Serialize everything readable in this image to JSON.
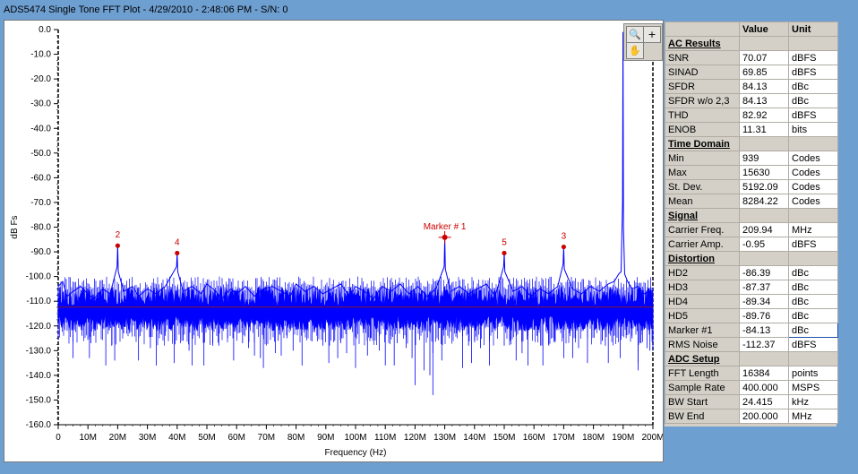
{
  "window": {
    "title": "ADS5474 Single Tone  FFT Plot - 4/29/2010 - 2:48:06 PM - S/N: 0"
  },
  "toolbar": {
    "zoom_icon": "magnifier-icon",
    "crosshair_icon": "plus-icon",
    "pan_icon": "hand-icon"
  },
  "chart_data": {
    "type": "line",
    "xlabel": "Frequency (Hz)",
    "ylabel": "dB Fs",
    "xlim": [
      0,
      200
    ],
    "ylim": [
      -160,
      0
    ],
    "x_ticks": [
      "0",
      "10M",
      "20M",
      "30M",
      "40M",
      "50M",
      "60M",
      "70M",
      "80M",
      "90M",
      "100M",
      "110M",
      "120M",
      "130M",
      "140M",
      "150M",
      "160M",
      "170M",
      "180M",
      "190M",
      "200M"
    ],
    "y_ticks": [
      "0.0",
      "-10.0",
      "-20.0",
      "-30.0",
      "-40.0",
      "-50.0",
      "-60.0",
      "-70.0",
      "-80.0",
      "-90.0",
      "-100.0",
      "-110.0",
      "-120.0",
      "-130.0",
      "-140.0",
      "-150.0",
      "-160.0"
    ],
    "series_color": "#0000ff",
    "noise_floor_level": -112.37,
    "noise_floor_color": "#8b1a1a",
    "spectrum": [
      [
        0,
        -104
      ],
      [
        1.5,
        -102
      ],
      [
        3,
        -108
      ],
      [
        5,
        -106
      ],
      [
        7.5,
        -104
      ],
      [
        10,
        -107
      ],
      [
        12,
        -109
      ],
      [
        15,
        -105
      ],
      [
        17.5,
        -107
      ],
      [
        19.8,
        -96
      ],
      [
        20,
        -87.5
      ],
      [
        20.2,
        -98
      ],
      [
        22,
        -106
      ],
      [
        25,
        -104
      ],
      [
        27,
        -108
      ],
      [
        30,
        -105
      ],
      [
        33,
        -107
      ],
      [
        36,
        -104
      ],
      [
        39.8,
        -96
      ],
      [
        40,
        -90.5
      ],
      [
        40.2,
        -98
      ],
      [
        42,
        -106
      ],
      [
        45,
        -104
      ],
      [
        48,
        -107
      ],
      [
        50,
        -103
      ],
      [
        53,
        -106
      ],
      [
        55,
        -109
      ],
      [
        58,
        -105
      ],
      [
        60,
        -107
      ],
      [
        63,
        -104
      ],
      [
        66,
        -108
      ],
      [
        69,
        -105
      ],
      [
        72,
        -104
      ],
      [
        75,
        -106
      ],
      [
        78,
        -108
      ],
      [
        80,
        -103
      ],
      [
        83,
        -106
      ],
      [
        86,
        -104
      ],
      [
        89,
        -107
      ],
      [
        92,
        -105
      ],
      [
        95,
        -103
      ],
      [
        98,
        -108
      ],
      [
        100,
        -104
      ],
      [
        103,
        -106
      ],
      [
        106,
        -109
      ],
      [
        109,
        -104
      ],
      [
        112,
        -106
      ],
      [
        115,
        -103
      ],
      [
        118,
        -107
      ],
      [
        121,
        -104
      ],
      [
        124,
        -108
      ],
      [
        127,
        -105
      ],
      [
        129.8,
        -96
      ],
      [
        130,
        -84.13
      ],
      [
        130.2,
        -97
      ],
      [
        132,
        -106
      ],
      [
        135,
        -104
      ],
      [
        138,
        -107
      ],
      [
        141,
        -105
      ],
      [
        144,
        -103
      ],
      [
        147,
        -108
      ],
      [
        149.8,
        -96
      ],
      [
        150,
        -90.5
      ],
      [
        150.2,
        -98
      ],
      [
        153,
        -106
      ],
      [
        156,
        -104
      ],
      [
        159,
        -108
      ],
      [
        162,
        -105
      ],
      [
        165,
        -107
      ],
      [
        168,
        -104
      ],
      [
        169.8,
        -95
      ],
      [
        170,
        -88
      ],
      [
        170.2,
        -97
      ],
      [
        173,
        -105
      ],
      [
        176,
        -107
      ],
      [
        179,
        -104
      ],
      [
        182,
        -106
      ],
      [
        185,
        -103
      ],
      [
        187,
        -102
      ],
      [
        188.5,
        -99
      ],
      [
        189.3,
        -98
      ],
      [
        189.8,
        -70
      ],
      [
        189.94,
        -0.95
      ],
      [
        190.1,
        -80
      ],
      [
        190.5,
        -99
      ],
      [
        191.5,
        -102
      ],
      [
        193,
        -105
      ],
      [
        195,
        -104
      ],
      [
        197,
        -107
      ],
      [
        199,
        -106
      ],
      [
        200,
        -106
      ]
    ],
    "noise_min_dips": [
      [
        3,
        -122
      ],
      [
        8,
        -124
      ],
      [
        11,
        -127
      ],
      [
        15,
        -121
      ],
      [
        18,
        -128
      ],
      [
        24,
        -123
      ],
      [
        29,
        -121
      ],
      [
        34,
        -125
      ],
      [
        38,
        -122
      ],
      [
        44,
        -130
      ],
      [
        47,
        -120
      ],
      [
        52,
        -128
      ],
      [
        57,
        -125
      ],
      [
        62,
        -127
      ],
      [
        66,
        -132
      ],
      [
        71,
        -121
      ],
      [
        74,
        -126
      ],
      [
        79,
        -130
      ],
      [
        84,
        -122
      ],
      [
        89,
        -128
      ],
      [
        93,
        -126
      ],
      [
        97,
        -131
      ],
      [
        103,
        -120
      ],
      [
        108,
        -130
      ],
      [
        112,
        -124
      ],
      [
        117,
        -129
      ],
      [
        120,
        -123
      ],
      [
        126,
        -131
      ],
      [
        134,
        -123
      ],
      [
        138,
        -128
      ],
      [
        142,
        -129
      ],
      [
        147,
        -122
      ],
      [
        152,
        -126
      ],
      [
        156,
        -131
      ],
      [
        161,
        -124
      ],
      [
        165,
        -128
      ],
      [
        172,
        -123
      ],
      [
        175,
        -129
      ],
      [
        181,
        -121
      ],
      [
        184,
        -128
      ],
      [
        187,
        -124
      ],
      [
        193,
        -125
      ],
      [
        196,
        -127
      ],
      [
        199,
        -130
      ],
      [
        5,
        -133
      ],
      [
        12,
        -124
      ],
      [
        16,
        -136
      ],
      [
        22,
        -123
      ],
      [
        27,
        -134
      ],
      [
        31,
        -129
      ],
      [
        36,
        -124
      ],
      [
        39,
        -135
      ],
      [
        42,
        -126
      ],
      [
        49,
        -136
      ],
      [
        54,
        -128
      ],
      [
        59,
        -134
      ],
      [
        64,
        -129
      ],
      [
        69,
        -137
      ],
      [
        73,
        -131
      ],
      [
        77,
        -125
      ],
      [
        82,
        -136
      ],
      [
        87,
        -124
      ],
      [
        91,
        -135
      ],
      [
        95,
        -127
      ],
      [
        100,
        -137
      ],
      [
        105,
        -125
      ],
      [
        110,
        -136
      ],
      [
        114,
        -127
      ],
      [
        119,
        -133
      ],
      [
        123,
        -138
      ],
      [
        125,
        -140
      ],
      [
        129,
        -134
      ],
      [
        131,
        -124
      ],
      [
        136,
        -137
      ],
      [
        140,
        -126
      ],
      [
        145,
        -136
      ],
      [
        150,
        -128
      ],
      [
        154,
        -134
      ],
      [
        158,
        -124
      ],
      [
        163,
        -136
      ],
      [
        167,
        -126
      ],
      [
        170,
        -133
      ],
      [
        174,
        -125
      ],
      [
        178,
        -135
      ],
      [
        183,
        -126
      ],
      [
        189,
        -133
      ],
      [
        191,
        -125
      ],
      [
        195,
        -135
      ],
      [
        198,
        -129
      ],
      [
        200,
        -124
      ]
    ],
    "deep_dips": [
      [
        10.5,
        -133
      ],
      [
        19,
        -134
      ],
      [
        33,
        -136
      ],
      [
        45,
        -136
      ],
      [
        68,
        -133
      ],
      [
        75,
        -132
      ],
      [
        94,
        -133
      ],
      [
        104,
        -132
      ],
      [
        113,
        -136
      ],
      [
        120,
        -144
      ],
      [
        126,
        -148
      ],
      [
        139,
        -135
      ],
      [
        158,
        -136
      ],
      [
        173,
        -133
      ],
      [
        185,
        -135
      ],
      [
        195,
        -138
      ],
      [
        200,
        -130
      ]
    ],
    "markers": [
      {
        "label": "2",
        "x": 20,
        "y": -87.5,
        "symbol": "dot"
      },
      {
        "label": "4",
        "x": 40,
        "y": -90.5,
        "symbol": "dot"
      },
      {
        "label": "Marker # 1",
        "x": 130,
        "y": -84.13,
        "symbol": "cross"
      },
      {
        "label": "5",
        "x": 150,
        "y": -90.5,
        "symbol": "dot"
      },
      {
        "label": "3",
        "x": 170,
        "y": -88,
        "symbol": "dot"
      }
    ],
    "marker_color": "#cc0000"
  },
  "results": {
    "header": {
      "value": "Value",
      "unit": "Unit"
    },
    "rows": [
      {
        "type": "section",
        "label": "AC Results"
      },
      {
        "label": "SNR",
        "value": "70.07",
        "unit": "dBFS"
      },
      {
        "label": "SINAD",
        "value": "69.85",
        "unit": "dBFS"
      },
      {
        "label": "SFDR",
        "value": "84.13",
        "unit": "dBc"
      },
      {
        "label": "SFDR w/o 2,3",
        "value": "84.13",
        "unit": "dBc"
      },
      {
        "label": "THD",
        "value": "82.92",
        "unit": "dBFS"
      },
      {
        "label": "ENOB",
        "value": "11.31",
        "unit": "bits"
      },
      {
        "type": "section",
        "label": "Time Domain"
      },
      {
        "label": "Min",
        "value": "939",
        "unit": "Codes"
      },
      {
        "label": "Max",
        "value": "15630",
        "unit": "Codes"
      },
      {
        "label": "St. Dev.",
        "value": "5192.09",
        "unit": "Codes"
      },
      {
        "label": "Mean",
        "value": "8284.22",
        "unit": "Codes"
      },
      {
        "type": "section",
        "label": "Signal"
      },
      {
        "label": "Carrier Freq.",
        "value": "209.94",
        "unit": "MHz"
      },
      {
        "label": "Carrier Amp.",
        "value": "-0.95",
        "unit": "dBFS"
      },
      {
        "type": "section",
        "label": "Distortion"
      },
      {
        "label": "HD2",
        "value": "-86.39",
        "unit": "dBc"
      },
      {
        "label": "HD3",
        "value": "-87.37",
        "unit": "dBc"
      },
      {
        "label": "HD4",
        "value": "-89.34",
        "unit": "dBc"
      },
      {
        "label": "HD5",
        "value": "-89.76",
        "unit": "dBc"
      },
      {
        "label": "Marker #1",
        "value": "-84.13",
        "unit": "dBc",
        "selected": true
      },
      {
        "label": "RMS Noise",
        "value": "-112.37",
        "unit": "dBFS"
      },
      {
        "type": "section",
        "label": "ADC Setup"
      },
      {
        "label": "FFT Length",
        "value": "16384",
        "unit": "points"
      },
      {
        "label": "Sample Rate",
        "value": "400.000",
        "unit": "MSPS"
      },
      {
        "label": "BW Start",
        "value": "24.415",
        "unit": "kHz"
      },
      {
        "label": "BW End",
        "value": "200.000",
        "unit": "MHz"
      }
    ]
  }
}
